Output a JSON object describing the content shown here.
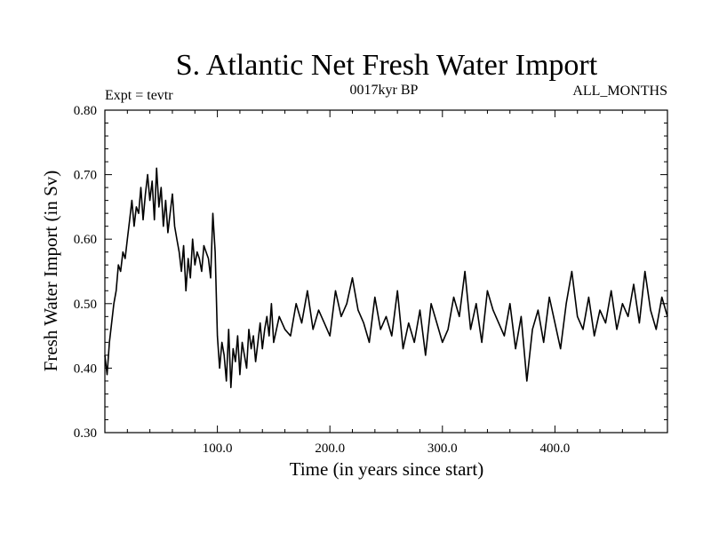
{
  "chart_data": {
    "type": "line",
    "title": "S. Atlantic Net Fresh Water Import",
    "subtitle_left": "Expt = tevtr",
    "subtitle_center": "0017kyr BP",
    "subtitle_right": "ALL_MONTHS",
    "xlabel": "Time (in years since start)",
    "ylabel": "Fresh Water Import (in Sv)",
    "xlim": [
      0,
      500
    ],
    "ylim": [
      0.3,
      0.8
    ],
    "xticks": [
      100,
      200,
      300,
      400
    ],
    "xtick_labels": [
      "100.0",
      "200.0",
      "300.0",
      "400.0"
    ],
    "yticks": [
      0.3,
      0.4,
      0.5,
      0.6,
      0.7,
      0.8
    ],
    "ytick_labels": [
      "0.30",
      "0.40",
      "0.50",
      "0.60",
      "0.70",
      "0.80"
    ],
    "grid": false,
    "line_color": "#000000",
    "series": [
      {
        "x": [
          0,
          2,
          4,
          6,
          8,
          10,
          12,
          14,
          16,
          18,
          20,
          22,
          24,
          26,
          28,
          30,
          32,
          34,
          36,
          38,
          40,
          42,
          44,
          46,
          48,
          50,
          52,
          54,
          56,
          58,
          60,
          62,
          64,
          66,
          68,
          70,
          72,
          74,
          76,
          78,
          80,
          82,
          84,
          86,
          88,
          90,
          92,
          94,
          96,
          98,
          100,
          102,
          104,
          106,
          108,
          110,
          112,
          114,
          116,
          118,
          120,
          122,
          124,
          126,
          128,
          130,
          132,
          134,
          136,
          138,
          140,
          142,
          144,
          146,
          148,
          150,
          155,
          160,
          165,
          170,
          175,
          180,
          185,
          190,
          195,
          200,
          205,
          210,
          215,
          220,
          225,
          230,
          235,
          240,
          245,
          250,
          255,
          260,
          265,
          270,
          275,
          280,
          285,
          290,
          295,
          300,
          305,
          310,
          315,
          320,
          325,
          330,
          335,
          340,
          345,
          350,
          355,
          360,
          365,
          370,
          375,
          380,
          385,
          390,
          395,
          400,
          405,
          410,
          415,
          420,
          425,
          430,
          435,
          440,
          445,
          450,
          455,
          460,
          465,
          470,
          475,
          480,
          485,
          490,
          495,
          500
        ],
        "y": [
          0.42,
          0.39,
          0.44,
          0.47,
          0.5,
          0.52,
          0.56,
          0.55,
          0.58,
          0.57,
          0.6,
          0.63,
          0.66,
          0.62,
          0.65,
          0.64,
          0.68,
          0.63,
          0.67,
          0.7,
          0.66,
          0.69,
          0.63,
          0.71,
          0.65,
          0.68,
          0.62,
          0.66,
          0.61,
          0.64,
          0.67,
          0.62,
          0.6,
          0.58,
          0.55,
          0.59,
          0.52,
          0.57,
          0.54,
          0.6,
          0.56,
          0.58,
          0.57,
          0.55,
          0.59,
          0.58,
          0.57,
          0.54,
          0.64,
          0.58,
          0.45,
          0.4,
          0.44,
          0.42,
          0.38,
          0.46,
          0.37,
          0.43,
          0.41,
          0.45,
          0.39,
          0.44,
          0.42,
          0.4,
          0.46,
          0.43,
          0.45,
          0.41,
          0.44,
          0.47,
          0.43,
          0.46,
          0.48,
          0.45,
          0.5,
          0.44,
          0.48,
          0.46,
          0.45,
          0.5,
          0.47,
          0.52,
          0.46,
          0.49,
          0.47,
          0.45,
          0.52,
          0.48,
          0.5,
          0.54,
          0.49,
          0.47,
          0.44,
          0.51,
          0.46,
          0.48,
          0.45,
          0.52,
          0.43,
          0.47,
          0.44,
          0.49,
          0.42,
          0.5,
          0.47,
          0.44,
          0.46,
          0.51,
          0.48,
          0.55,
          0.46,
          0.5,
          0.44,
          0.52,
          0.49,
          0.47,
          0.45,
          0.5,
          0.43,
          0.48,
          0.38,
          0.46,
          0.49,
          0.44,
          0.51,
          0.47,
          0.43,
          0.5,
          0.55,
          0.48,
          0.46,
          0.51,
          0.45,
          0.49,
          0.47,
          0.52,
          0.46,
          0.5,
          0.48,
          0.53,
          0.47,
          0.55,
          0.49,
          0.46,
          0.51,
          0.48
        ]
      }
    ]
  }
}
